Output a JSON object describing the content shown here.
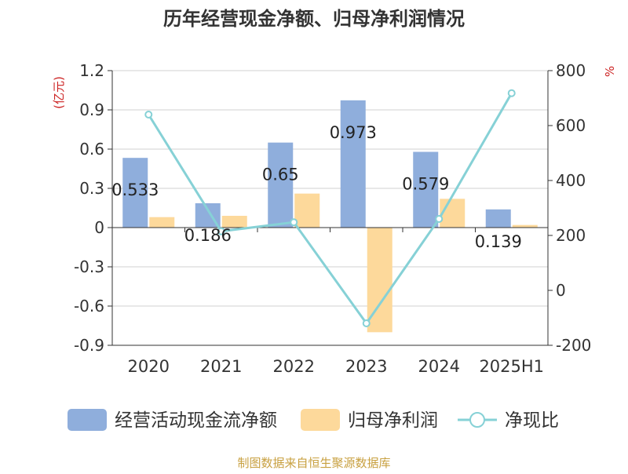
{
  "chart_data": {
    "type": "bar",
    "title": "历年经营现金净额、归母净利润情况",
    "ylabel_left": "(亿元)",
    "ylabel_right": "%",
    "categories": [
      "2020",
      "2021",
      "2022",
      "2023",
      "2024",
      "2025H1"
    ],
    "ylim_left": [
      -0.9,
      1.2
    ],
    "yticks_left": [
      "1.2",
      "0.9",
      "0.6",
      "0.3",
      "0",
      "-0.3",
      "-0.6",
      "-0.9"
    ],
    "ylim_right": [
      -200,
      800
    ],
    "yticks_right": [
      "800",
      "600",
      "400",
      "200",
      "0",
      "-200"
    ],
    "grid": true,
    "legend_position": "bottom",
    "series": [
      {
        "name": "经营活动现金流净额",
        "type": "bar",
        "axis": "left",
        "color": "#8faedc",
        "values": [
          0.533,
          0.186,
          0.65,
          0.973,
          0.579,
          0.139
        ],
        "labels": [
          "0.533",
          "0.186",
          "0.65",
          "0.973",
          "0.579",
          "0.139"
        ]
      },
      {
        "name": "归母净利润",
        "type": "bar",
        "axis": "left",
        "color": "#fdd99b",
        "values": [
          0.08,
          0.09,
          0.26,
          -0.8,
          0.22,
          0.02
        ]
      },
      {
        "name": "净现比",
        "type": "line",
        "axis": "right",
        "color": "#86d1d6",
        "values": [
          640,
          215,
          248,
          -120,
          260,
          718
        ]
      }
    ],
    "source": "制图数据来自恒生聚源数据库"
  }
}
